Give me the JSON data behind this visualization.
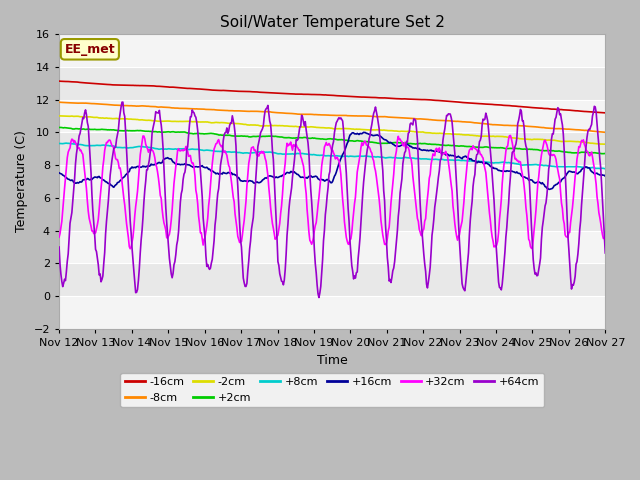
{
  "title": "Soil/Water Temperature Set 2",
  "xlabel": "Time",
  "ylabel": "Temperature (C)",
  "xlim": [
    0,
    15
  ],
  "ylim": [
    -2,
    16
  ],
  "yticks": [
    -2,
    0,
    2,
    4,
    6,
    8,
    10,
    12,
    14,
    16
  ],
  "xtick_labels": [
    "Nov 12",
    "Nov 13",
    "Nov 14",
    "Nov 15",
    "Nov 16",
    "Nov 17",
    "Nov 18",
    "Nov 19",
    "Nov 20",
    "Nov 21",
    "Nov 22",
    "Nov 23",
    "Nov 24",
    "Nov 25",
    "Nov 26",
    "Nov 27"
  ],
  "watermark": "EE_met",
  "colors": {
    "-16cm": "#cc0000",
    "-8cm": "#ff8800",
    "-2cm": "#dddd00",
    "+2cm": "#00cc00",
    "+8cm": "#00cccc",
    "+16cm": "#000099",
    "+32cm": "#ff00ff",
    "+64cm": "#9900cc"
  },
  "lw": 1.2,
  "bg_bands": [
    "#f4f4f4",
    "#e8e8e8"
  ],
  "fig_bg": "#cccccc"
}
